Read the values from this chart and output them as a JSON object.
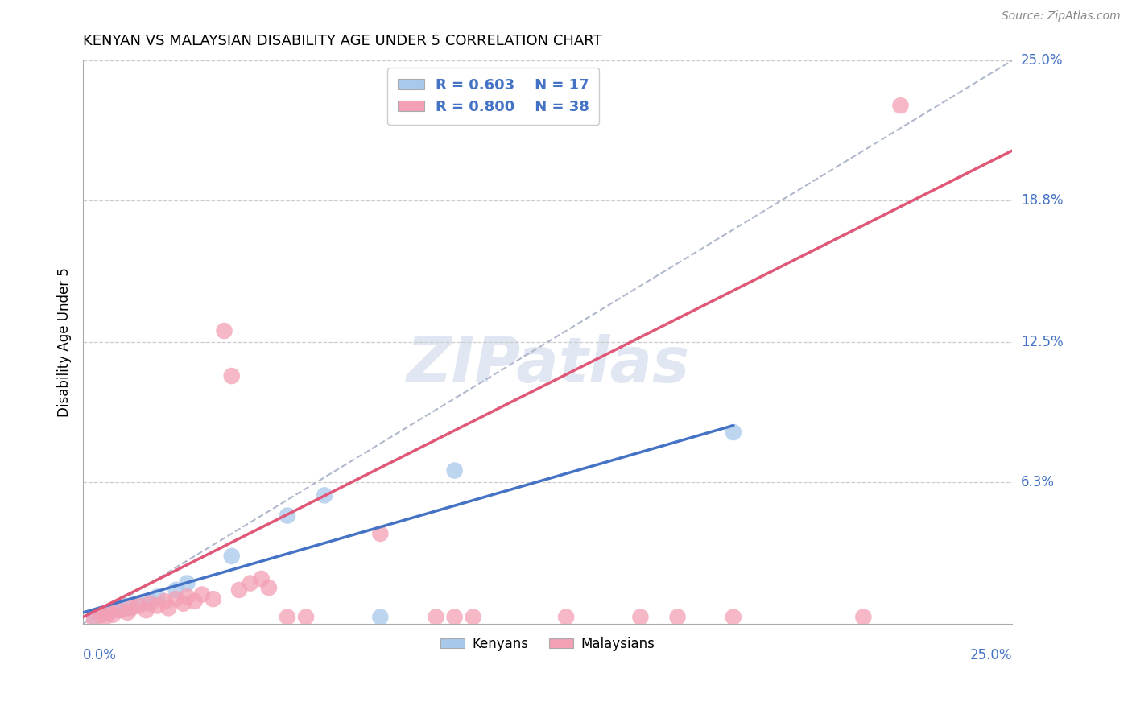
{
  "title": "KENYAN VS MALAYSIAN DISABILITY AGE UNDER 5 CORRELATION CHART",
  "source": "Source: ZipAtlas.com",
  "ylabel": "Disability Age Under 5",
  "y_tick_positions": [
    0.063,
    0.125,
    0.188,
    0.25
  ],
  "y_tick_labels": [
    "6.3%",
    "12.5%",
    "18.8%",
    "25.0%"
  ],
  "xlim": [
    0.0,
    0.25
  ],
  "ylim": [
    0.0,
    0.25
  ],
  "watermark": "ZIPatlas",
  "legend_kenya_R": "R = 0.603",
  "legend_kenya_N": "N = 17",
  "legend_malaysia_R": "R = 0.800",
  "legend_malaysia_N": "N = 38",
  "kenyan_color": "#A8C8EC",
  "malaysian_color": "#F4A0B5",
  "kenyan_line_color": "#4472C4",
  "malaysian_line_color": "#E05878",
  "diagonal_color": "#B0B8CC",
  "kenyan_line": [
    [
      0.0,
      0.005
    ],
    [
      0.175,
      0.088
    ]
  ],
  "malaysian_line": [
    [
      0.0,
      0.003
    ],
    [
      0.25,
      0.21
    ]
  ],
  "diagonal_line": [
    [
      0.0,
      0.0
    ],
    [
      0.25,
      0.25
    ]
  ],
  "kenyan_points": [
    [
      0.003,
      0.003
    ],
    [
      0.005,
      0.004
    ],
    [
      0.007,
      0.005
    ],
    [
      0.008,
      0.006
    ],
    [
      0.01,
      0.006
    ],
    [
      0.012,
      0.007
    ],
    [
      0.015,
      0.009
    ],
    [
      0.018,
      0.01
    ],
    [
      0.02,
      0.012
    ],
    [
      0.025,
      0.015
    ],
    [
      0.028,
      0.018
    ],
    [
      0.04,
      0.03
    ],
    [
      0.055,
      0.048
    ],
    [
      0.065,
      0.057
    ],
    [
      0.08,
      0.003
    ],
    [
      0.1,
      0.068
    ],
    [
      0.175,
      0.085
    ]
  ],
  "malaysian_points": [
    [
      0.003,
      0.002
    ],
    [
      0.005,
      0.004
    ],
    [
      0.006,
      0.003
    ],
    [
      0.007,
      0.005
    ],
    [
      0.008,
      0.004
    ],
    [
      0.01,
      0.006
    ],
    [
      0.012,
      0.005
    ],
    [
      0.013,
      0.007
    ],
    [
      0.015,
      0.008
    ],
    [
      0.017,
      0.006
    ],
    [
      0.018,
      0.009
    ],
    [
      0.02,
      0.008
    ],
    [
      0.022,
      0.01
    ],
    [
      0.023,
      0.007
    ],
    [
      0.025,
      0.011
    ],
    [
      0.027,
      0.009
    ],
    [
      0.028,
      0.012
    ],
    [
      0.03,
      0.01
    ],
    [
      0.032,
      0.013
    ],
    [
      0.035,
      0.011
    ],
    [
      0.038,
      0.13
    ],
    [
      0.04,
      0.11
    ],
    [
      0.042,
      0.015
    ],
    [
      0.045,
      0.018
    ],
    [
      0.048,
      0.02
    ],
    [
      0.05,
      0.016
    ],
    [
      0.055,
      0.003
    ],
    [
      0.06,
      0.003
    ],
    [
      0.08,
      0.04
    ],
    [
      0.095,
      0.003
    ],
    [
      0.1,
      0.003
    ],
    [
      0.105,
      0.003
    ],
    [
      0.13,
      0.003
    ],
    [
      0.15,
      0.003
    ],
    [
      0.16,
      0.003
    ],
    [
      0.175,
      0.003
    ],
    [
      0.21,
      0.003
    ],
    [
      0.22,
      0.23
    ]
  ]
}
